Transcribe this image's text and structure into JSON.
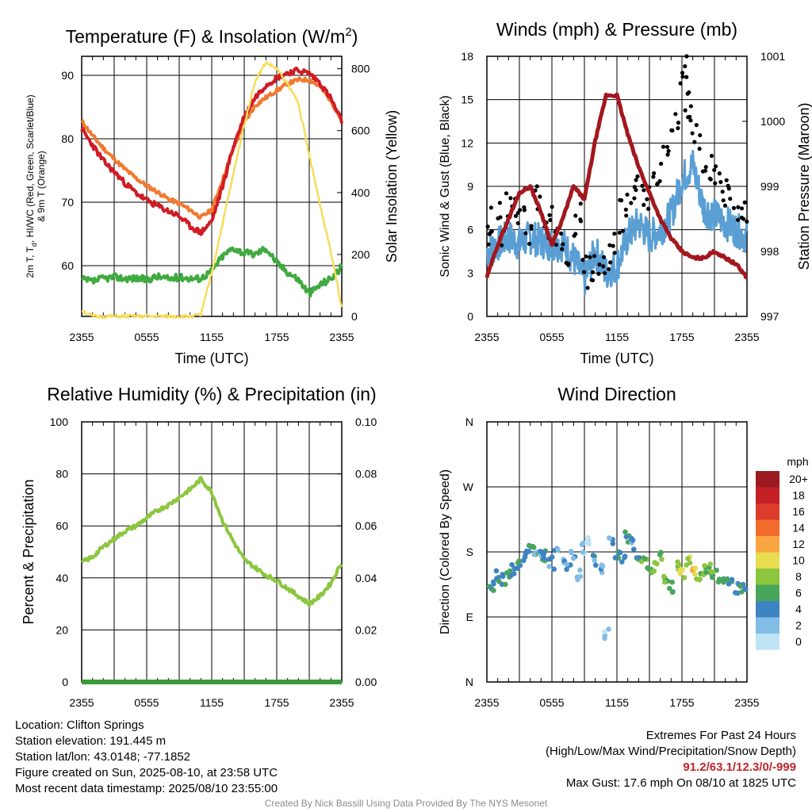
{
  "colors": {
    "temperature": "#d01c25",
    "heat_index": "#d01c25",
    "dewpoint": "#3faa3f",
    "temp_9m": "#f07a30",
    "insolation": "#f6dd5c",
    "wind": "#5a9fd4",
    "gust": "#000000",
    "pressure": "#a3171e",
    "humidity": "#8cc63f",
    "precipitation": "#3a9a3a"
  },
  "chart_data": [
    {
      "type": "line",
      "title": "Temperature (F) & Insolation (W/m²)",
      "title_text": "Temperature (F) & Insolation (W/m",
      "title_sup": "2",
      "title_end": ")",
      "xlabel": "Time (UTC)",
      "ylabel_left_line1": "2m T, T",
      "ylabel_left_sub": "d",
      "ylabel_left_line1_end": ", HI/WC (Red, Green, Scarlet/Blue)",
      "ylabel_left_line2": "& 9m T (Orange)",
      "ylabel_right": "Solar Insolation (Yellow)",
      "x_ticks": [
        "2355",
        "0555",
        "1155",
        "1755",
        "2355"
      ],
      "ylim_left": [
        52,
        93
      ],
      "y_ticks_left": [
        60,
        70,
        80,
        90
      ],
      "ylim_right": [
        0,
        840
      ],
      "y_ticks_right": [
        0,
        200,
        400,
        600,
        800
      ],
      "x_hours": [
        0,
        1,
        2,
        3,
        4,
        5,
        6,
        7,
        8,
        9,
        10,
        11,
        12,
        13,
        14,
        15,
        16,
        17,
        18,
        19,
        20,
        21,
        22,
        23,
        24
      ],
      "series": [
        {
          "key": "temp_9m",
          "axis": "left",
          "width": 4,
          "values": [
            82.8,
            80.5,
            78.5,
            76.8,
            75.2,
            73.8,
            72.6,
            71.6,
            70.5,
            69.8,
            68.8,
            67.6,
            68.8,
            73.5,
            78.5,
            82.5,
            85.2,
            86.5,
            87.6,
            88.7,
            89.3,
            89.3,
            88.2,
            86.0,
            82.9
          ]
        },
        {
          "key": "temperature",
          "axis": "left",
          "width": 4,
          "values": [
            81.5,
            79.0,
            76.5,
            74.8,
            73.0,
            71.5,
            70.3,
            69.4,
            68.6,
            67.8,
            66.2,
            65.2,
            67.0,
            72.5,
            78.8,
            83.5,
            86.5,
            88.5,
            89.6,
            90.4,
            90.8,
            90.3,
            88.8,
            86.3,
            82.7
          ]
        },
        {
          "key": "dewpoint",
          "axis": "left",
          "width": 4,
          "values": [
            57.8,
            57.5,
            58.0,
            58.2,
            58.0,
            58.0,
            57.8,
            58.3,
            57.9,
            58.2,
            58.0,
            58.0,
            59.2,
            61.5,
            62.8,
            62.0,
            61.8,
            62.8,
            60.5,
            59.0,
            57.8,
            55.6,
            57.0,
            58.0,
            59.8
          ]
        },
        {
          "key": "insolation",
          "axis": "right",
          "width": 2.5,
          "values": [
            20,
            0,
            0,
            0,
            0,
            0,
            0,
            0,
            0,
            0,
            0,
            5,
            140,
            300,
            460,
            620,
            760,
            820,
            800,
            750,
            690,
            520,
            360,
            210,
            30
          ]
        }
      ]
    },
    {
      "type": "line",
      "title": "Winds (mph) & Pressure (mb)",
      "xlabel": "Time (UTC)",
      "ylabel_left": "Sonic Wind & Gust (Blue, Black)",
      "ylabel_right": "Station Pressure (Maroon)",
      "x_ticks": [
        "2355",
        "0555",
        "1155",
        "1755",
        "2355"
      ],
      "ylim_left": [
        0,
        18
      ],
      "y_ticks_left": [
        0,
        3,
        6,
        9,
        12,
        15,
        18
      ],
      "ylim_right": [
        997,
        1001
      ],
      "y_ticks_right": [
        997,
        998,
        999,
        1000,
        1001
      ],
      "x_hours": [
        0,
        1,
        2,
        3,
        4,
        5,
        6,
        7,
        8,
        9,
        10,
        11,
        12,
        13,
        14,
        15,
        16,
        17,
        18,
        19,
        20,
        21,
        22,
        23,
        24
      ],
      "series": [
        {
          "key": "wind",
          "axis": "left",
          "width": 3,
          "name": "",
          "values": [
            4.5,
            5.0,
            5.5,
            5.0,
            5.5,
            5.2,
            5.0,
            5.0,
            4.0,
            2.5,
            4.5,
            3.0,
            3.5,
            5.5,
            6.5,
            5.5,
            6.0,
            7.0,
            9.5,
            10.5,
            7.5,
            7.0,
            6.5,
            6.0,
            5.5
          ]
        },
        {
          "key": "pressure",
          "axis": "right",
          "width": 5,
          "name": "",
          "values": [
            997.6,
            998.1,
            998.5,
            998.9,
            999.0,
            998.6,
            998.1,
            998.5,
            999.0,
            998.8,
            999.7,
            1000.4,
            1000.4,
            999.8,
            999.3,
            998.9,
            998.5,
            998.2,
            998.0,
            997.9,
            997.9,
            998.0,
            997.9,
            997.8,
            997.6
          ]
        }
      ],
      "gust_points": {
        "hours": [
          0,
          0.5,
          1,
          1.5,
          2,
          2.5,
          3,
          3.5,
          4,
          4.5,
          5,
          5.5,
          6,
          6.5,
          7,
          7.5,
          8,
          8.5,
          9,
          9.5,
          10,
          10.5,
          11,
          11.5,
          12,
          12.5,
          13,
          13.5,
          14,
          14.5,
          15,
          15.5,
          16,
          16.5,
          17,
          17.5,
          18,
          18.3,
          18.5,
          18.8,
          19,
          19.5,
          20,
          20.5,
          21,
          21.5,
          22,
          22.5,
          23,
          23.5,
          24
        ],
        "values": [
          5.5,
          6.5,
          7.0,
          6.0,
          8.0,
          7.5,
          7.0,
          6.5,
          6.0,
          8.0,
          7.5,
          6.0,
          6.5,
          5.5,
          5.0,
          4.5,
          6.0,
          7.0,
          4.0,
          3.0,
          3.5,
          2.5,
          4.0,
          4.5,
          5.0,
          7.0,
          7.5,
          8.0,
          9.0,
          8.5,
          8.0,
          9.5,
          10.0,
          11.0,
          12.0,
          13.5,
          16.5,
          17.6,
          15.0,
          14.0,
          13.0,
          12.5,
          11.0,
          10.5,
          9.5,
          9.0,
          8.5,
          8.0,
          7.5,
          7.0,
          7.5
        ]
      }
    },
    {
      "type": "line",
      "title": "Relative Humidity (%) & Precipitation (in)",
      "ylabel_left": "Percent & Precipitation",
      "x_ticks": [
        "2355",
        "0555",
        "1155",
        "1755",
        "2355"
      ],
      "ylim_left": [
        0,
        100
      ],
      "y_ticks_left": [
        0,
        20,
        40,
        60,
        80,
        100
      ],
      "ylim_right": [
        0,
        0.1
      ],
      "y_ticks_right": [
        "0.00",
        "0.02",
        "0.04",
        "0.06",
        "0.08",
        "0.10"
      ],
      "x_hours": [
        0,
        1,
        2,
        3,
        4,
        5,
        6,
        7,
        8,
        9,
        10,
        11,
        12,
        13,
        14,
        15,
        16,
        17,
        18,
        19,
        20,
        21,
        22,
        23,
        24
      ],
      "series": [
        {
          "key": "humidity",
          "axis": "left",
          "width": 4,
          "name": "",
          "values": [
            46,
            48,
            52,
            55,
            58,
            60,
            63,
            66,
            68,
            71,
            74,
            78,
            73,
            62,
            54,
            47,
            44,
            41,
            39,
            36,
            33,
            30,
            33,
            38,
            46
          ]
        },
        {
          "key": "precipitation",
          "axis": "right",
          "width": 6,
          "name": "",
          "values": [
            0,
            0,
            0,
            0,
            0,
            0,
            0,
            0,
            0,
            0,
            0,
            0,
            0,
            0,
            0,
            0,
            0,
            0,
            0,
            0,
            0,
            0,
            0,
            0,
            0
          ]
        }
      ]
    },
    {
      "type": "scatter",
      "title": "Wind Direction",
      "ylabel_left": "Direction (Colored By Speed)",
      "x_ticks": [
        "2355",
        "0555",
        "1155",
        "1755",
        "2355"
      ],
      "y_ticks_left": [
        "N",
        "E",
        "S",
        "W",
        "N"
      ],
      "ylim_left": [
        0,
        360
      ],
      "legend_title": "mph",
      "legend_labels": [
        "20+",
        "18",
        "16",
        "14",
        "12",
        "10",
        "8",
        "6",
        "4",
        "2",
        "0"
      ],
      "legend_colors": [
        "#9b1b20",
        "#c42026",
        "#dd3b2c",
        "#f16b2d",
        "#f9a542",
        "#e8dc50",
        "#8cc63f",
        "#4aa55c",
        "#3e84c2",
        "#82bde6",
        "#bfe4f6"
      ],
      "hours": [
        0,
        0.5,
        1,
        1.5,
        2,
        2.5,
        3,
        3.5,
        4,
        4.5,
        5,
        5.5,
        6,
        6.5,
        7,
        7.5,
        8,
        8.5,
        9,
        9.5,
        10,
        10.5,
        11,
        11.5,
        12,
        12.5,
        13,
        13.5,
        14,
        14.5,
        15,
        15.5,
        16,
        16.5,
        17,
        17.5,
        18,
        18.5,
        19,
        19.5,
        20,
        20.5,
        21,
        21.5,
        22,
        22.5,
        23,
        23.5,
        24
      ],
      "directions": [
        140,
        135,
        145,
        140,
        150,
        155,
        165,
        175,
        180,
        178,
        172,
        175,
        165,
        178,
        170,
        160,
        175,
        150,
        185,
        195,
        170,
        155,
        65,
        200,
        180,
        175,
        200,
        190,
        165,
        170,
        150,
        160,
        175,
        140,
        130,
        160,
        150,
        165,
        155,
        145,
        155,
        160,
        150,
        140,
        145,
        135,
        130,
        128,
        125
      ],
      "speeds": [
        4,
        4,
        4,
        5,
        6,
        4,
        5,
        5,
        5,
        4,
        4,
        5,
        4,
        3,
        2,
        4,
        3,
        2,
        2,
        1,
        4,
        3,
        1,
        2,
        5,
        4,
        5,
        4,
        5,
        6,
        6,
        7,
        8,
        7,
        6,
        8,
        10,
        9,
        11,
        8,
        8,
        7,
        6,
        7,
        5,
        5,
        4,
        5,
        4
      ]
    }
  ],
  "info_left": {
    "location": "Location: Clifton Springs",
    "elevation": "Station elevation: 191.445 m",
    "latlon": "Station lat/lon: 43.0148; -77.1852",
    "created": "Figure created on Sun, 2025-08-10, at 23:58 UTC",
    "recent": "Most recent data timestamp: 2025/08/10 23:55:00"
  },
  "info_right": {
    "title": "Extremes For Past 24 Hours",
    "subtitle": "(High/Low/Max Wind/Precipitation/Snow Depth)",
    "values": "91.2/63.1/12.3/0/-999",
    "gust": "Max Gust: 17.6 mph On 08/10 at 1825 UTC"
  },
  "credit": "Created By Nick Bassill Using Data Provided By The NYS Mesonet"
}
